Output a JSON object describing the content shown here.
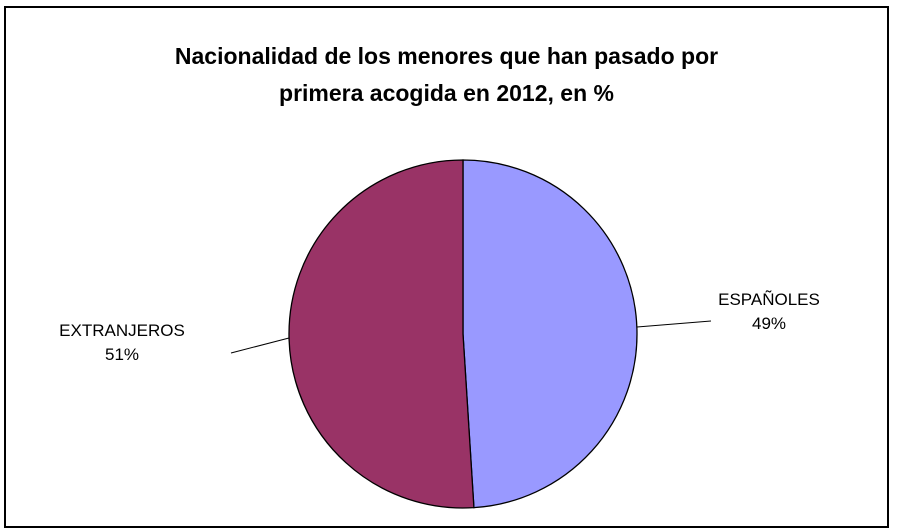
{
  "chart_data": {
    "type": "pie",
    "title": [
      "Nacionalidad de los menores que han pasado por",
      "primera acogida en 2012, en %"
    ],
    "slices": [
      {
        "name": "ESPAÑOLES",
        "value": 49,
        "label": "49%",
        "color": "#9999ff"
      },
      {
        "name": "EXTRANJEROS",
        "value": 51,
        "label": "51%",
        "color": "#993366"
      }
    ],
    "slice_border_color": "#000000",
    "legend": "none"
  }
}
